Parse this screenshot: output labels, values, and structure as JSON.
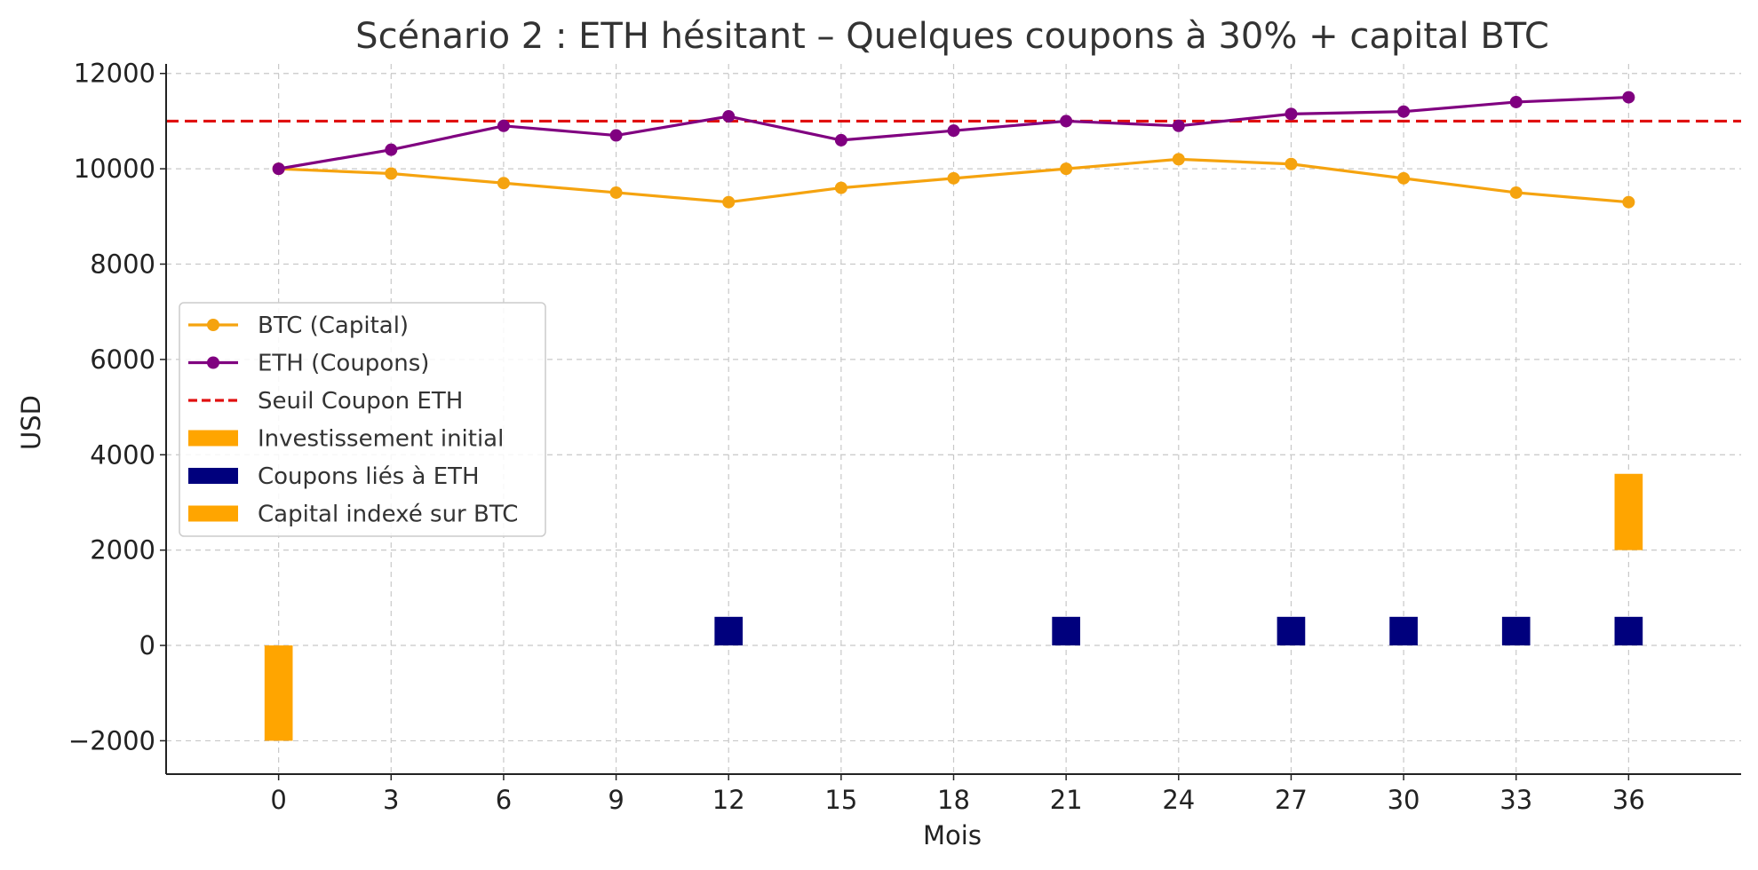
{
  "chart_data": {
    "type": "line",
    "title": "Scénario 2 : ETH hésitant – Quelques coupons à 30% + capital BTC",
    "xlabel": "Mois",
    "ylabel": "USD",
    "xlim": [
      -3,
      39
    ],
    "ylim": [
      -2700,
      12200
    ],
    "x_ticks": [
      "0",
      "3",
      "6",
      "9",
      "12",
      "15",
      "18",
      "21",
      "24",
      "27",
      "30",
      "33",
      "36"
    ],
    "y_ticks": [
      "−2000",
      "0",
      "2000",
      "4000",
      "6000",
      "8000",
      "10000",
      "12000"
    ],
    "grid": true,
    "legend_position": "center-left",
    "series": [
      {
        "name": "BTC (Capital)",
        "kind": "line",
        "color": "#f5a30f",
        "x": [
          0,
          3,
          6,
          9,
          12,
          15,
          18,
          21,
          24,
          27,
          30,
          33,
          36
        ],
        "values": [
          10000,
          9900,
          9700,
          9500,
          9300,
          9600,
          9800,
          10000,
          10200,
          10100,
          9800,
          9500,
          9300
        ]
      },
      {
        "name": "ETH (Coupons)",
        "kind": "line",
        "color": "#800080",
        "x": [
          0,
          3,
          6,
          9,
          12,
          15,
          18,
          21,
          24,
          27,
          30,
          33,
          36
        ],
        "values": [
          10000,
          10400,
          10900,
          10700,
          11100,
          10600,
          10800,
          11000,
          10900,
          11150,
          11200,
          11400,
          11500
        ]
      },
      {
        "name": "Seuil Coupon ETH",
        "kind": "hline",
        "color": "#e01010",
        "value": 11000
      },
      {
        "name": "Investissement initial",
        "kind": "bar",
        "color": "#ffa500",
        "x": [
          0
        ],
        "values": [
          -2000
        ]
      },
      {
        "name": "Coupons liés à ETH",
        "kind": "bar",
        "color": "#00007d",
        "x": [
          12,
          21,
          27,
          30,
          33,
          36
        ],
        "values": [
          600,
          600,
          600,
          600,
          600,
          600
        ]
      },
      {
        "name": "Capital indexé sur BTC",
        "kind": "bar",
        "color": "#ffa500",
        "x": [
          36
        ],
        "base": 2000,
        "values": [
          1600
        ]
      }
    ]
  }
}
